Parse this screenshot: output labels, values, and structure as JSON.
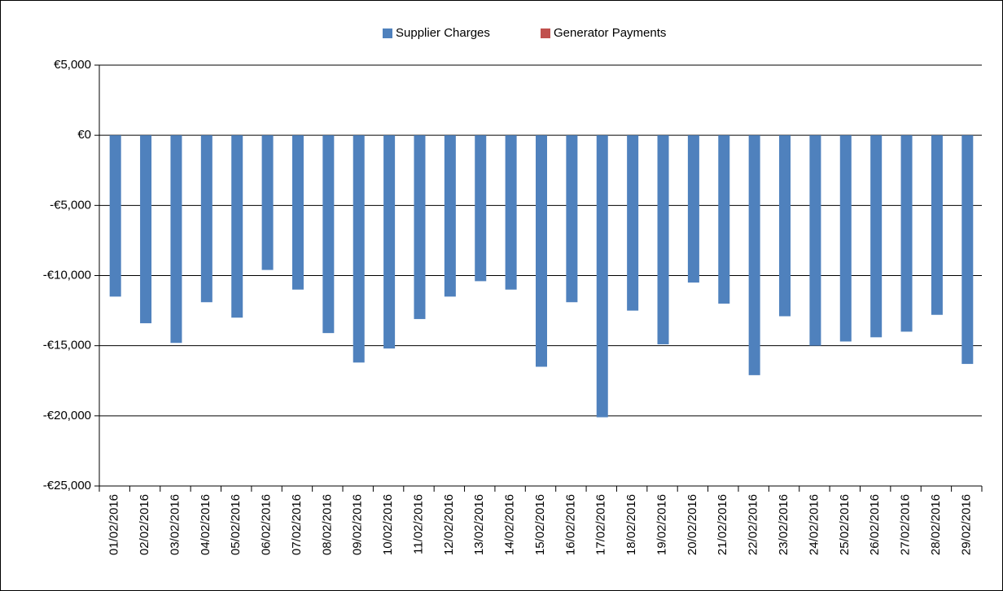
{
  "chart_data": {
    "type": "bar",
    "categories": [
      "01/02/2016",
      "02/02/2016",
      "03/02/2016",
      "04/02/2016",
      "05/02/2016",
      "06/02/2016",
      "07/02/2016",
      "08/02/2016",
      "09/02/2016",
      "10/02/2016",
      "11/02/2016",
      "12/02/2016",
      "13/02/2016",
      "14/02/2016",
      "15/02/2016",
      "16/02/2016",
      "17/02/2016",
      "18/02/2016",
      "19/02/2016",
      "20/02/2016",
      "21/02/2016",
      "22/02/2016",
      "23/02/2016",
      "24/02/2016",
      "25/02/2016",
      "26/02/2016",
      "27/02/2016",
      "28/02/2016",
      "29/02/2016"
    ],
    "series": [
      {
        "name": "Supplier Charges",
        "color": "#4f81bd",
        "values": [
          -11500,
          -13400,
          -14800,
          -11900,
          -13000,
          -9600,
          -11000,
          -14100,
          -16200,
          -15200,
          -13100,
          -11500,
          -10400,
          -11000,
          -16500,
          -11900,
          -20100,
          -12500,
          -14900,
          -10500,
          -12000,
          -17100,
          -12900,
          -15000,
          -14700,
          -14400,
          -14000,
          -12800,
          -16300
        ]
      },
      {
        "name": "Generator Payments",
        "color": "#c0504d",
        "values": [
          0,
          0,
          0,
          0,
          0,
          0,
          0,
          0,
          0,
          0,
          0,
          0,
          0,
          0,
          0,
          0,
          0,
          0,
          0,
          0,
          0,
          0,
          0,
          0,
          0,
          0,
          0,
          0,
          0
        ]
      }
    ],
    "ylim": [
      -25000,
      5000
    ],
    "yticks": [
      {
        "value": 5000,
        "label": "€5,000"
      },
      {
        "value": 0,
        "label": "€0"
      },
      {
        "value": -5000,
        "label": "-€5,000"
      },
      {
        "value": -10000,
        "label": "-€10,000"
      },
      {
        "value": -15000,
        "label": "-€15,000"
      },
      {
        "value": -20000,
        "label": "-€20,000"
      },
      {
        "value": -25000,
        "label": "-€25,000"
      }
    ],
    "grid": true,
    "legend": "top"
  }
}
